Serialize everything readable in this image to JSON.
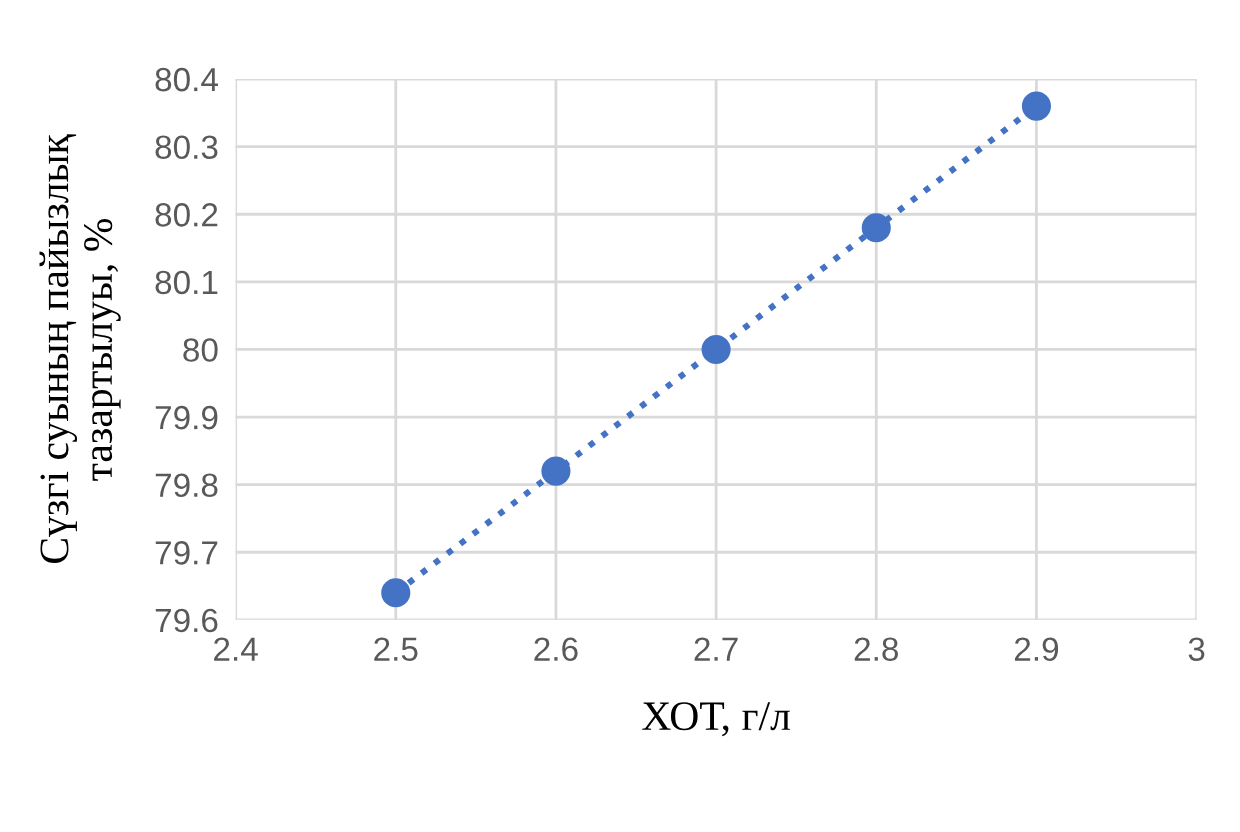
{
  "chart_data": {
    "type": "scatter",
    "xlabel": "ХОТ, г/л",
    "ylabel": "Сүзгі суының пайызлық\nтазартылуы, %",
    "x": [
      2.5,
      2.6,
      2.7,
      2.8,
      2.9
    ],
    "series": [
      {
        "color": "#4472c4",
        "marker": "circle",
        "values": [
          79.64,
          79.82,
          80.0,
          80.18,
          80.36
        ]
      },
      {
        "type": "line",
        "color": "#4472c4",
        "line_style": "dotted",
        "marker": "none",
        "x": [
          2.5,
          2.9
        ],
        "values": [
          79.64,
          80.36
        ]
      }
    ],
    "xlim": [
      2.4,
      3
    ],
    "xticks": [
      2.4,
      2.5,
      2.6,
      2.7,
      2.8,
      2.9,
      3
    ],
    "ylim": [
      79.6,
      80.4
    ],
    "yticks": [
      79.6,
      79.7,
      79.8,
      79.9,
      80,
      80.1,
      80.2,
      80.3,
      80.4
    ],
    "grid": true,
    "legend": false
  }
}
